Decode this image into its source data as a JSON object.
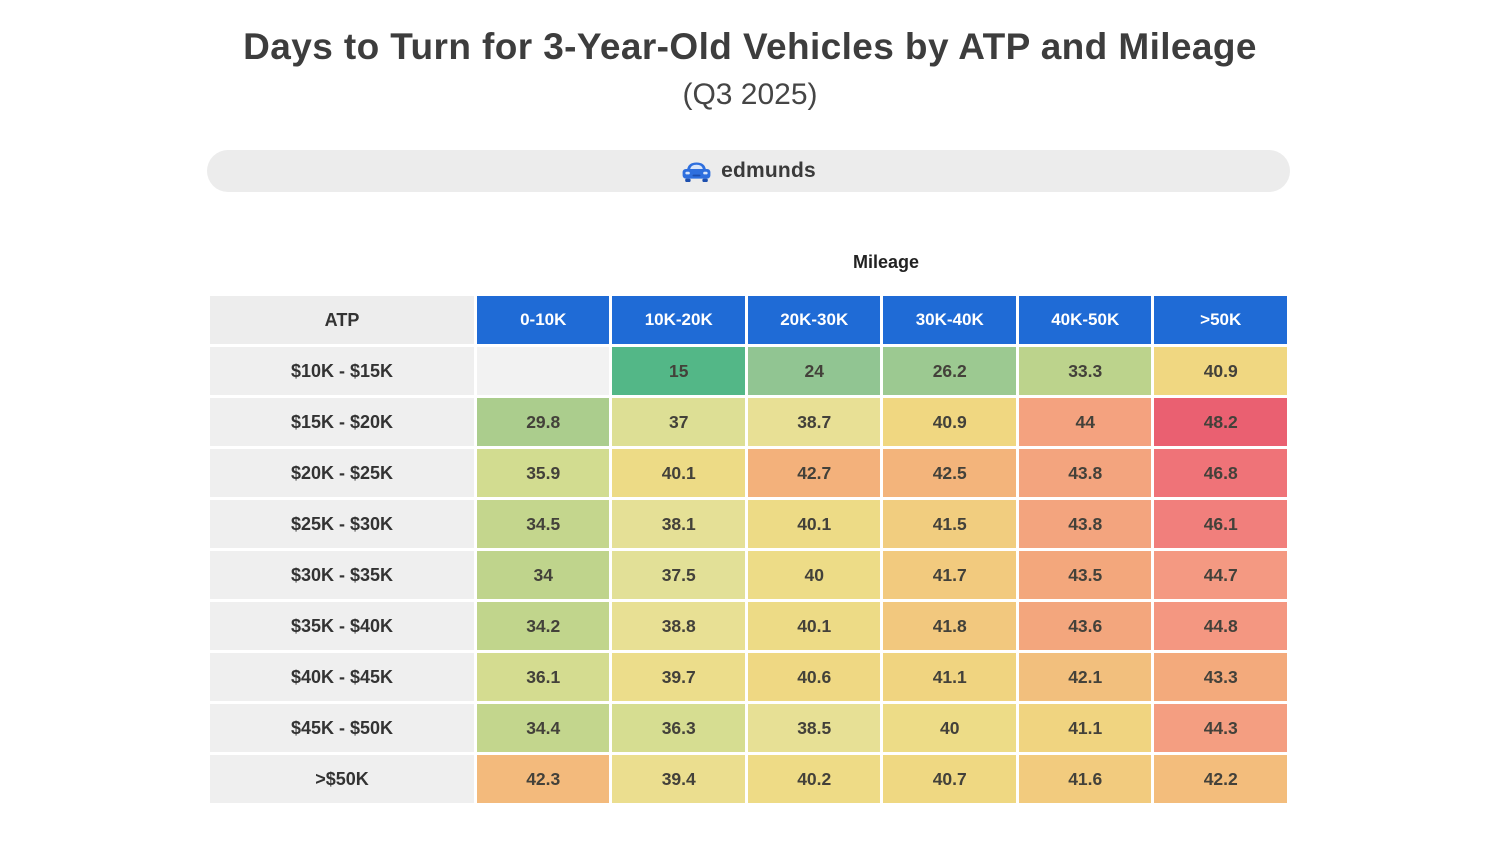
{
  "page": {
    "title": "Days to Turn for 3-Year-Old Vehicles by ATP and Mileage",
    "subtitle": "(Q3 2025)",
    "brand": "edmunds",
    "brand_icon": "car-icon"
  },
  "colors": {
    "title_text": "#3d3d3d",
    "banner_bg": "#ececec",
    "brand_blue": "#2e6fde",
    "header_blue": "#1f6bd6",
    "header_text": "#ffffff",
    "label_bg": "#efefef",
    "label_text": "#333333",
    "cell_text": "#43413a",
    "empty_cell_bg": "#f2f2f2"
  },
  "chart_data": {
    "type": "heatmap",
    "title": "Days to Turn for 3-Year-Old Vehicles by ATP and Mileage",
    "subtitle": "(Q3 2025)",
    "x_axis_label": "Mileage",
    "y_axis_label": "ATP",
    "corner_label": "ATP",
    "columns": [
      "0-10K",
      "10K-20K",
      "20K-30K",
      "30K-40K",
      "40K-50K",
      ">50K"
    ],
    "rows": [
      "$10K - $15K",
      "$15K - $20K",
      "$20K - $25K",
      "$25K - $30K",
      "$30K - $35K",
      "$35K - $40K",
      "$40K - $45K",
      "$45K - $50K",
      ">$50K"
    ],
    "values": [
      [
        null,
        15,
        24,
        26.2,
        33.3,
        40.9
      ],
      [
        29.8,
        37,
        38.7,
        40.9,
        44,
        48.2
      ],
      [
        35.9,
        40.1,
        42.7,
        42.5,
        43.8,
        46.8
      ],
      [
        34.5,
        38.1,
        40.1,
        41.5,
        43.8,
        46.1
      ],
      [
        34,
        37.5,
        40,
        41.7,
        43.5,
        44.7
      ],
      [
        34.2,
        38.8,
        40.1,
        41.8,
        43.6,
        44.8
      ],
      [
        36.1,
        39.7,
        40.6,
        41.1,
        42.1,
        43.3
      ],
      [
        34.4,
        36.3,
        38.5,
        40,
        41.1,
        44.3
      ],
      [
        42.3,
        39.4,
        40.2,
        40.7,
        41.6,
        42.2
      ]
    ],
    "value_range": [
      15,
      48.2
    ],
    "colormap": {
      "name": "green-yellow-orange-red",
      "stops": [
        [
          15,
          "#53b787"
        ],
        [
          20,
          "#79bf8d"
        ],
        [
          25,
          "#97c793"
        ],
        [
          28,
          "#a3cb8e"
        ],
        [
          31,
          "#b0cf8c"
        ],
        [
          34,
          "#bfd48c"
        ],
        [
          36,
          "#d3dc90"
        ],
        [
          37.5,
          "#e2e097"
        ],
        [
          39,
          "#e9e094"
        ],
        [
          40,
          "#eddc87"
        ],
        [
          41,
          "#f0d680"
        ],
        [
          41.8,
          "#f2c87e"
        ],
        [
          42.5,
          "#f3b47b"
        ],
        [
          43.5,
          "#f3a77c"
        ],
        [
          44.5,
          "#f49c82"
        ],
        [
          45.5,
          "#f38b80"
        ],
        [
          46.5,
          "#f0777a"
        ],
        [
          47.5,
          "#ed6873"
        ],
        [
          48.5,
          "#e95d70"
        ]
      ]
    },
    "legend_position": "none",
    "grid": "white-gaps-between-cells"
  }
}
